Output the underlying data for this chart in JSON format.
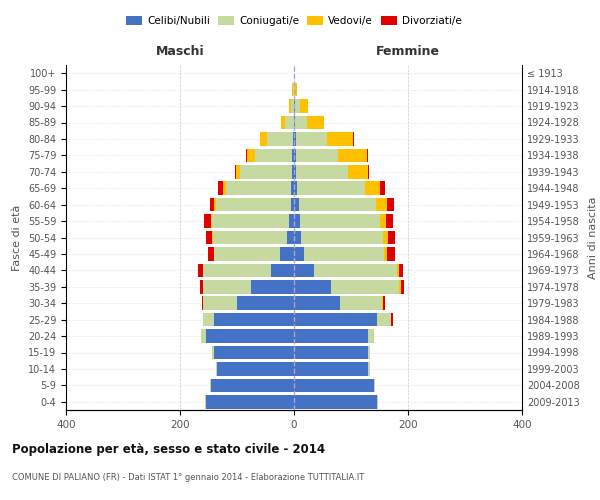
{
  "age_groups": [
    "0-4",
    "5-9",
    "10-14",
    "15-19",
    "20-24",
    "25-29",
    "30-34",
    "35-39",
    "40-44",
    "45-49",
    "50-54",
    "55-59",
    "60-64",
    "65-69",
    "70-74",
    "75-79",
    "80-84",
    "85-89",
    "90-94",
    "95-99",
    "100+"
  ],
  "birth_years": [
    "2009-2013",
    "2004-2008",
    "1999-2003",
    "1994-1998",
    "1989-1993",
    "1984-1988",
    "1979-1983",
    "1974-1978",
    "1969-1973",
    "1964-1968",
    "1959-1963",
    "1954-1958",
    "1949-1953",
    "1944-1948",
    "1939-1943",
    "1934-1938",
    "1929-1933",
    "1924-1928",
    "1919-1923",
    "1914-1918",
    "≤ 1913"
  ],
  "males": {
    "celibi": [
      155,
      145,
      135,
      140,
      155,
      140,
      100,
      75,
      40,
      25,
      12,
      8,
      6,
      5,
      4,
      3,
      2,
      0,
      0,
      0,
      0
    ],
    "coniugati": [
      2,
      2,
      2,
      3,
      8,
      20,
      60,
      85,
      120,
      115,
      130,
      135,
      130,
      115,
      90,
      65,
      45,
      15,
      5,
      2,
      0
    ],
    "vedovi": [
      0,
      0,
      0,
      0,
      0,
      0,
      0,
      0,
      0,
      1,
      2,
      3,
      4,
      5,
      8,
      15,
      12,
      8,
      3,
      1,
      0
    ],
    "divorziati": [
      0,
      0,
      0,
      0,
      0,
      0,
      2,
      5,
      8,
      10,
      10,
      12,
      8,
      8,
      2,
      1,
      0,
      0,
      0,
      0,
      0
    ]
  },
  "females": {
    "nubili": [
      145,
      140,
      130,
      130,
      130,
      145,
      80,
      65,
      35,
      18,
      12,
      10,
      8,
      5,
      4,
      3,
      3,
      2,
      2,
      0,
      0
    ],
    "coniugate": [
      2,
      2,
      3,
      3,
      10,
      25,
      75,
      120,
      145,
      140,
      145,
      140,
      135,
      120,
      90,
      75,
      55,
      20,
      8,
      2,
      0
    ],
    "vedove": [
      0,
      0,
      0,
      0,
      0,
      1,
      2,
      3,
      4,
      5,
      8,
      12,
      20,
      25,
      35,
      50,
      45,
      30,
      15,
      3,
      0
    ],
    "divorziate": [
      0,
      0,
      0,
      0,
      0,
      2,
      3,
      5,
      8,
      15,
      12,
      12,
      12,
      10,
      3,
      2,
      2,
      0,
      0,
      0,
      0
    ]
  },
  "colors": {
    "celibi": "#4472c4",
    "coniugati": "#c5d9a0",
    "vedovi": "#ffc000",
    "divorziati": "#e00000"
  },
  "xlim": 400,
  "title": "Popolazione per età, sesso e stato civile - 2014",
  "subtitle": "COMUNE DI PALIANO (FR) - Dati ISTAT 1° gennaio 2014 - Elaborazione TUTTITALIA.IT",
  "ylabel_left": "Fasce di età",
  "ylabel_right": "Anni di nascita",
  "xlabel_left": "Maschi",
  "xlabel_right": "Femmine",
  "background_color": "#ffffff",
  "grid_color": "#cccccc"
}
